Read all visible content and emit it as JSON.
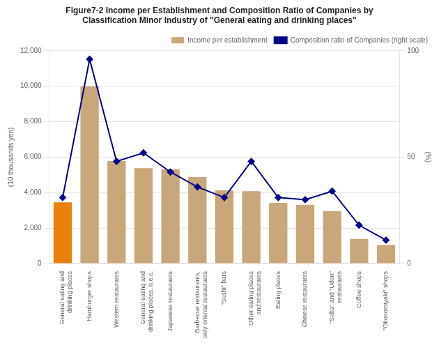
{
  "chart_data": {
    "type": "bar",
    "title": [
      "Figure7-2 Income per Establishment and Composition Ratio of Companies by",
      "Classification Minor Industry of \"General eating and drinking places\""
    ],
    "ylabel": "(10 thousands yen)",
    "y2label": "(%)",
    "categories": [
      "General eating and\ndrinking places",
      "Hamburger shops",
      "Western restaurants",
      "General eating and\ndrinking places, n.e.c.",
      "Japanese restaurants",
      "Barbecue restaurants,\nonly oriental restaurants",
      "\"Sushi\" bars",
      "Other eating places\nand restaurants",
      "Eating places",
      "Chinese restaurants",
      "\"Soba\" and \"Udon\"\nrestaurants",
      "Coffee shops",
      "\"Okonomiyaki\" shops"
    ],
    "series": [
      {
        "name": "Income per establishment",
        "type": "bar",
        "colors": [
          "#E8820A",
          "#C8A87A",
          "#C8A87A",
          "#C8A87A",
          "#C8A87A",
          "#C8A87A",
          "#C8A87A",
          "#C8A87A",
          "#C8A87A",
          "#C8A87A",
          "#C8A87A",
          "#C8A87A",
          "#C8A87A"
        ],
        "values": [
          3450,
          10000,
          5780,
          5380,
          5320,
          4870,
          4130,
          4080,
          3420,
          3310,
          2960,
          1380,
          1050
        ]
      },
      {
        "name": "Composition ratio of Companies (right scale)",
        "type": "line",
        "axis": "y2",
        "color": "#00008B",
        "marker": "diamond",
        "values": [
          31,
          96,
          48,
          52,
          43,
          36,
          31,
          48,
          31,
          30,
          34,
          18,
          11
        ]
      }
    ],
    "ylim": [
      0,
      12000
    ],
    "yticks": [
      0,
      {
        "value": 2000,
        "label": "2,000"
      },
      {
        "value": 4000,
        "label": "4,000"
      },
      {
        "value": 6000,
        "label": "6,000"
      },
      {
        "value": 8000,
        "label": "8,000"
      },
      {
        "value": 10000,
        "label": "10,000"
      },
      {
        "value": 12000,
        "label": "12,000"
      }
    ],
    "y2lim": [
      0,
      100
    ],
    "y2ticks": [
      0,
      50,
      100
    ],
    "grid": true,
    "legend": "upper right"
  }
}
